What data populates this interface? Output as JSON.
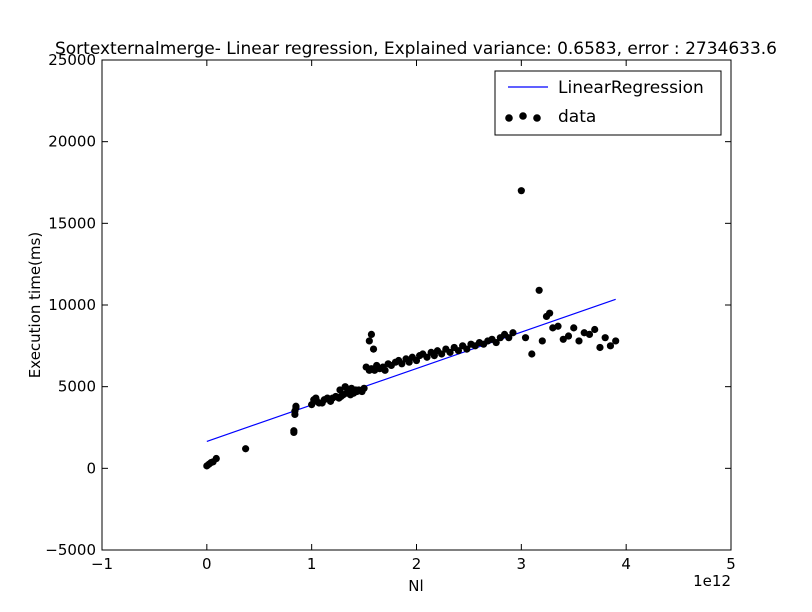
{
  "chart_data": {
    "type": "scatter",
    "title": "Sortexternalmerge- Linear regression, Explained variance: 0.6583, error : 2734633.6",
    "xlabel": "Nl",
    "ylabel": "Execution time(ms)",
    "x_offset_label": "1e12",
    "xlim": [
      -1,
      5
    ],
    "ylim": [
      -5000,
      25000
    ],
    "xticks": [
      -1,
      0,
      1,
      2,
      3,
      4,
      5
    ],
    "yticks": [
      -5000,
      0,
      5000,
      10000,
      15000,
      20000,
      25000
    ],
    "xtick_labels": [
      "−1",
      "0",
      "1",
      "2",
      "3",
      "4",
      "5"
    ],
    "ytick_labels": [
      "−5000",
      "0",
      "5000",
      "10000",
      "15000",
      "20000",
      "25000"
    ],
    "grid": false,
    "legend_position": "top-right",
    "series": [
      {
        "name": "LinearRegression",
        "kind": "line",
        "color": "#0000ff",
        "x": [
          0.0,
          3.9
        ],
        "y": [
          1650,
          10350
        ]
      },
      {
        "name": "data",
        "kind": "scatter",
        "color": "#000000",
        "x": [
          0.0,
          0.02,
          0.04,
          0.06,
          0.09,
          0.37,
          0.83,
          0.83,
          0.84,
          0.84,
          0.85,
          0.85,
          1.0,
          1.02,
          1.04,
          1.05,
          1.07,
          1.1,
          1.12,
          1.15,
          1.18,
          1.2,
          1.23,
          1.26,
          1.28,
          1.3,
          1.33,
          1.35,
          1.37,
          1.4,
          1.43,
          1.45,
          1.48,
          1.5,
          1.52,
          1.55,
          1.57,
          1.6,
          1.62,
          1.65,
          1.68,
          1.7,
          1.73,
          1.76,
          1.8,
          1.83,
          1.86,
          1.9,
          1.93,
          1.96,
          2.0,
          2.03,
          2.06,
          2.1,
          2.14,
          2.17,
          2.2,
          2.24,
          2.28,
          2.32,
          2.36,
          2.4,
          2.44,
          2.48,
          2.52,
          2.56,
          2.6,
          2.64,
          2.68,
          2.72,
          2.76,
          2.8,
          2.84,
          2.88,
          2.92,
          1.27,
          1.32,
          1.38,
          1.42,
          1.55,
          1.57,
          1.59,
          3.0,
          3.04,
          3.1,
          3.17,
          3.2,
          3.24,
          3.27,
          3.3,
          3.35,
          3.4,
          3.45,
          3.5,
          3.55,
          3.6,
          3.65,
          3.7,
          3.75,
          3.8,
          3.85,
          3.9
        ],
        "y": [
          150,
          250,
          350,
          400,
          600,
          1200,
          2200,
          2300,
          3300,
          3500,
          3700,
          3800,
          3900,
          4200,
          4300,
          4100,
          4000,
          4000,
          4200,
          4300,
          4100,
          4300,
          4400,
          4300,
          4400,
          4500,
          4600,
          4700,
          4500,
          4600,
          4700,
          4800,
          4700,
          4900,
          6200,
          6000,
          6100,
          6000,
          6300,
          6100,
          6200,
          6000,
          6400,
          6300,
          6500,
          6600,
          6400,
          6700,
          6500,
          6800,
          6600,
          6900,
          7000,
          6800,
          7100,
          6900,
          7200,
          7000,
          7300,
          7100,
          7400,
          7200,
          7500,
          7300,
          7600,
          7500,
          7700,
          7600,
          7800,
          7900,
          7700,
          8000,
          8200,
          8000,
          8300,
          4800,
          5000,
          4900,
          4800,
          7800,
          8200,
          7300,
          17000,
          8000,
          7000,
          10900,
          7800,
          9300,
          9500,
          8600,
          8700,
          7900,
          8100,
          8600,
          7800,
          8300,
          8200,
          8500,
          7400,
          8000,
          7500,
          7800
        ]
      }
    ]
  }
}
